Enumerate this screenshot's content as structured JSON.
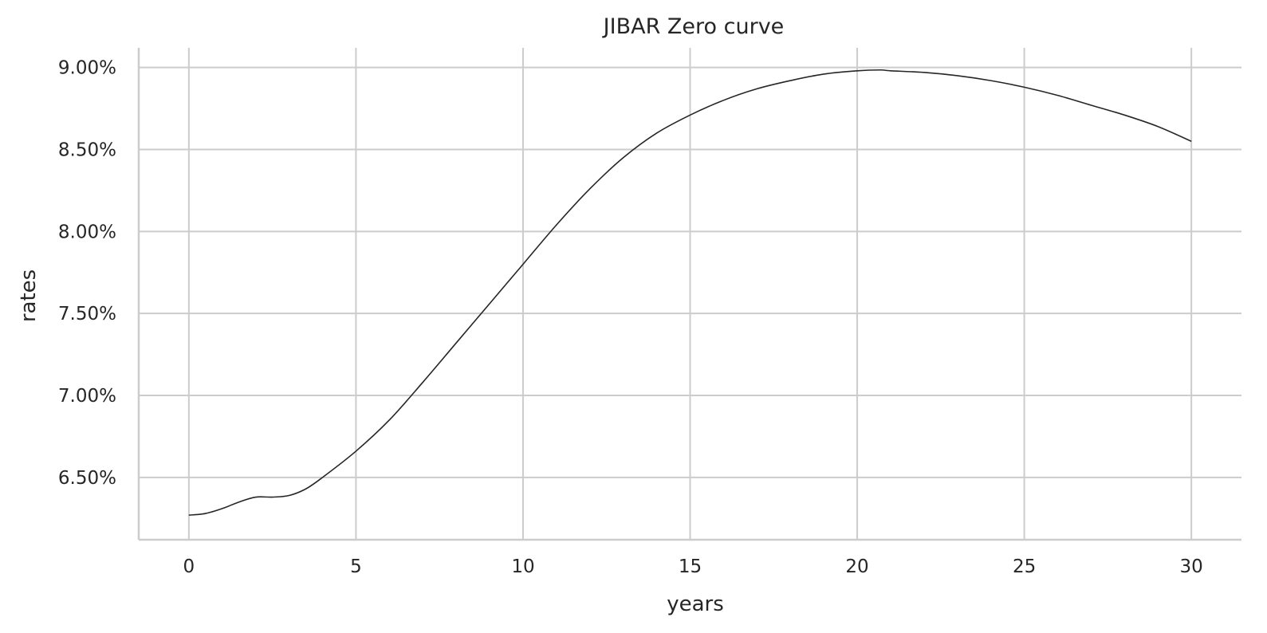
{
  "chart_data": {
    "type": "line",
    "title": "JIBAR Zero curve",
    "xlabel": "years",
    "ylabel": "rates",
    "xlim": [
      -1.5,
      31.5
    ],
    "ylim": [
      6.12,
      9.12
    ],
    "x_ticks": [
      0,
      5,
      10,
      15,
      20,
      25,
      30
    ],
    "y_ticks": [
      6.5,
      7.0,
      7.5,
      8.0,
      8.5,
      9.0
    ],
    "y_tick_labels": [
      "6.50%",
      "7.00%",
      "7.50%",
      "8.00%",
      "8.50%",
      "9.00%"
    ],
    "grid": true,
    "line_color": "#262626",
    "series": [
      {
        "x": [
          0,
          0.5,
          1,
          1.5,
          2,
          2.5,
          3,
          3.5,
          4,
          5,
          6,
          7,
          8,
          9,
          10,
          11,
          12,
          13,
          14,
          15,
          16,
          17,
          18,
          19,
          20,
          20.7,
          21,
          22,
          23,
          24,
          25,
          26,
          27,
          28,
          29,
          30
        ],
        "values": [
          6.27,
          6.28,
          6.31,
          6.35,
          6.38,
          6.38,
          6.39,
          6.43,
          6.5,
          6.66,
          6.85,
          7.08,
          7.32,
          7.56,
          7.8,
          8.04,
          8.26,
          8.45,
          8.6,
          8.71,
          8.8,
          8.87,
          8.92,
          8.96,
          8.98,
          8.985,
          8.98,
          8.97,
          8.95,
          8.92,
          8.88,
          8.83,
          8.77,
          8.71,
          8.64,
          8.55
        ]
      }
    ]
  }
}
